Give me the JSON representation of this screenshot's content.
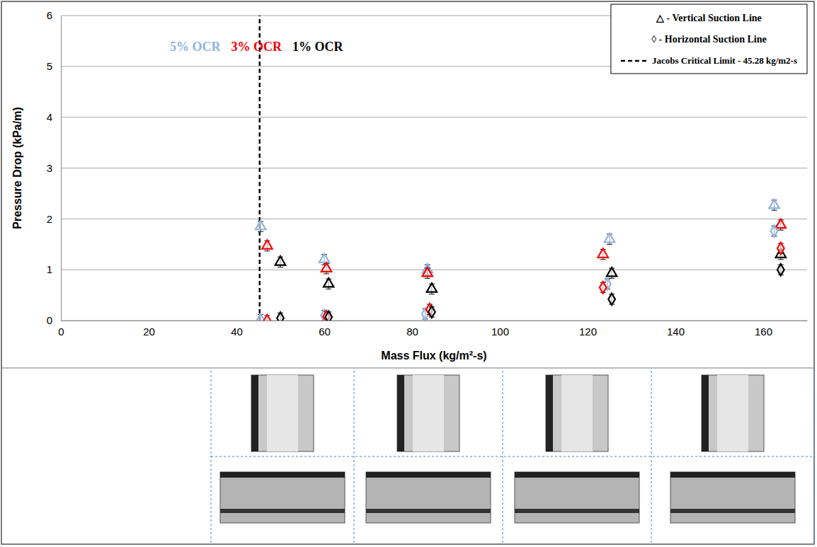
{
  "chart_data": {
    "type": "scatter",
    "x_label": "Mass Flux (kg/m²-s)",
    "y_label": "Pressure Drop (kPa/m)",
    "xlim": [
      0,
      170
    ],
    "xticks": [
      0,
      20,
      40,
      60,
      80,
      100,
      120,
      140,
      160
    ],
    "ylim": [
      0,
      6
    ],
    "yticks": [
      0,
      1,
      2,
      3,
      4,
      5,
      6
    ],
    "grid": true,
    "legend": "upper right",
    "legend_entries": [
      "△ - Vertical Suction Line",
      "◊ - Horizontal Suction Line"
    ],
    "reference_line": {
      "x": 45.28,
      "label": "Jacobs Critical Limit - 45.28 kg/m2-s",
      "line_style": "dashed"
    },
    "series": [
      {
        "name": "5% OCR",
        "color": "#8db3e2",
        "marker": "triangle",
        "x": [
          45.5,
          60,
          83.5,
          125,
          162.5
        ],
        "values": [
          1.85,
          1.2,
          1.0,
          1.6,
          2.27
        ],
        "errors": [
          0.1,
          0.1,
          0.1,
          0.1,
          0.1
        ]
      },
      {
        "name": "3% OCR",
        "color": "#ff0000",
        "marker": "triangle",
        "x": [
          47,
          60.5,
          83.5,
          123.5,
          164
        ],
        "values": [
          1.47,
          1.02,
          0.93,
          1.3,
          1.88
        ],
        "errors": [
          0.1,
          0.1,
          0.1,
          0.1,
          0.1
        ]
      },
      {
        "name": "1% OCR",
        "color": "#000000",
        "marker": "triangle",
        "x": [
          50,
          61,
          84.5,
          125.5,
          164
        ],
        "values": [
          1.15,
          0.72,
          0.62,
          0.93,
          1.3
        ],
        "errors": [
          0.1,
          0.1,
          0.1,
          0.1,
          0.1
        ]
      },
      {
        "color": "#8db3e2",
        "marker": "diamond",
        "x": [
          45.5,
          60,
          83,
          124.5,
          162.5
        ],
        "values": [
          0.02,
          0.1,
          0.13,
          0.72,
          1.76
        ],
        "errors": [
          0.1,
          0.1,
          0.1,
          0.1,
          0.1
        ]
      },
      {
        "color": "#ff0000",
        "marker": "diamond",
        "x": [
          47,
          60.5,
          84,
          123.5,
          164
        ],
        "values": [
          0.0,
          0.08,
          0.22,
          0.65,
          1.42
        ],
        "errors": [
          0.1,
          0.1,
          0.1,
          0.1,
          0.1
        ]
      },
      {
        "color": "#000000",
        "marker": "diamond",
        "x": [
          50,
          61,
          84.5,
          125.5,
          164
        ],
        "values": [
          0.05,
          0.07,
          0.17,
          0.42,
          1.0
        ],
        "errors": [
          0.1,
          0.1,
          0.1,
          0.1,
          0.1
        ]
      }
    ]
  }
}
